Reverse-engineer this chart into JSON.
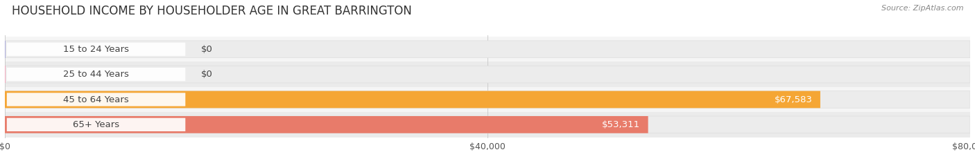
{
  "title": "HOUSEHOLD INCOME BY HOUSEHOLDER AGE IN GREAT BARRINGTON",
  "source": "Source: ZipAtlas.com",
  "categories": [
    "15 to 24 Years",
    "25 to 44 Years",
    "45 to 64 Years",
    "65+ Years"
  ],
  "values": [
    0,
    0,
    67583,
    53311
  ],
  "bar_colors": [
    "#a8a8d8",
    "#f0a8bc",
    "#f5a635",
    "#e87b6a"
  ],
  "label_colors": [
    "#333333",
    "#333333",
    "#ffffff",
    "#ffffff"
  ],
  "xlim": [
    0,
    80000
  ],
  "xtick_labels": [
    "$0",
    "$40,000",
    "$80,000"
  ],
  "bg_color": "#ffffff",
  "row_bg_color": "#f0f0f0",
  "title_fontsize": 12,
  "tick_fontsize": 9,
  "label_fontsize": 9.5,
  "value_labels": [
    "$0",
    "$0",
    "$67,583",
    "$53,311"
  ],
  "fig_width": 14.06,
  "fig_height": 2.33
}
